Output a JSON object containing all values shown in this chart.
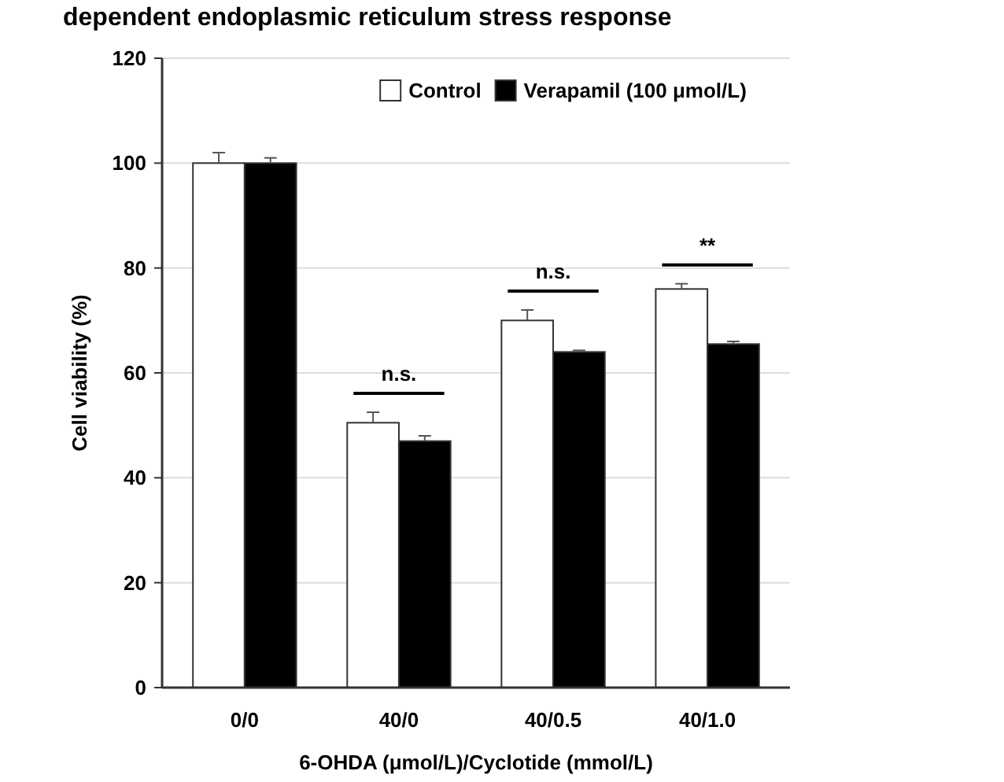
{
  "chart_data": {
    "type": "bar",
    "title": "dependent endoplasmic reticulum stress response",
    "xlabel": "6-OHDA (μmol/L)/Cyclotide (mmol/L)",
    "ylabel": "Cell viability (%)",
    "categories": [
      "0/0",
      "40/0",
      "40/0.5",
      "40/1.0"
    ],
    "series": [
      {
        "name": "Control",
        "color": "#ffffff",
        "values": [
          100,
          50.5,
          70,
          76
        ],
        "errors": [
          2,
          2,
          2,
          1
        ]
      },
      {
        "name": "Verapamil (100 μmol/L)",
        "color": "#000000",
        "values": [
          100,
          47,
          64,
          65.5
        ],
        "errors": [
          1,
          1,
          0.3,
          0.5
        ]
      }
    ],
    "ylim": [
      0,
      120
    ],
    "yticks": [
      0,
      20,
      40,
      60,
      80,
      100,
      120
    ],
    "grid": "y",
    "legend": "top right",
    "annotations": [
      "n.s.",
      "n.s.",
      "**"
    ]
  }
}
